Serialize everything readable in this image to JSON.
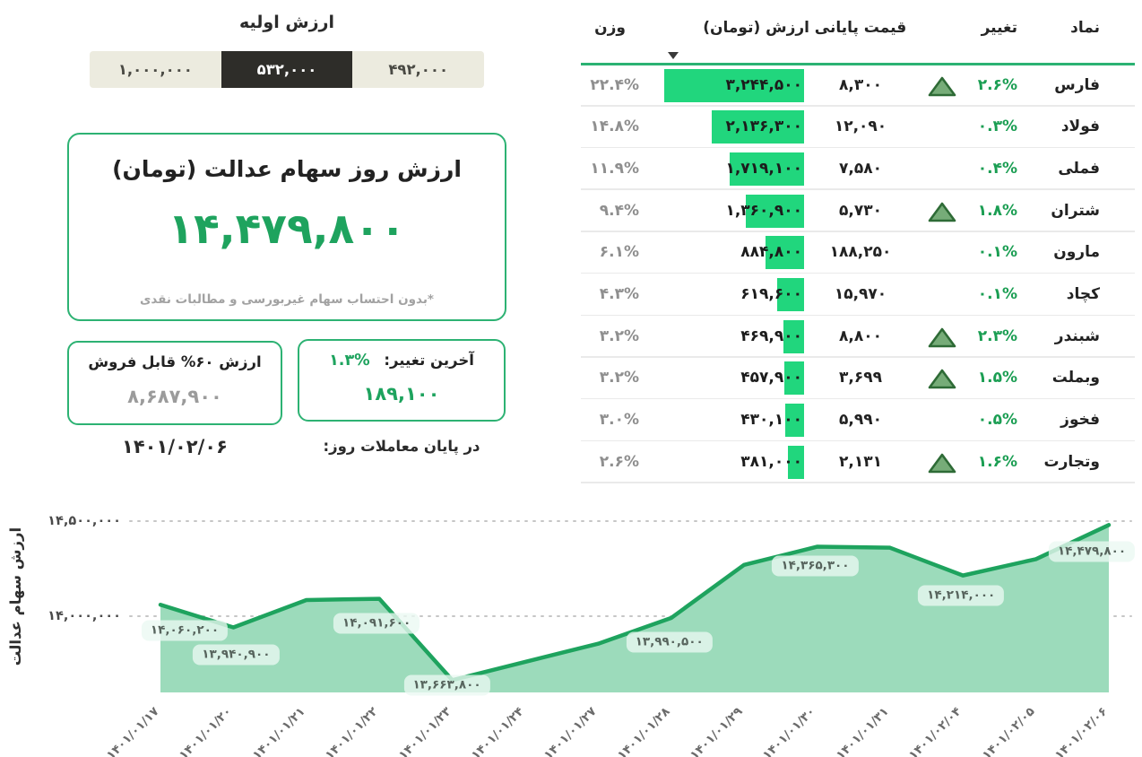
{
  "initial_value": {
    "title": "ارزش اولیه",
    "options": [
      "۱,۰۰۰,۰۰۰",
      "۵۳۲,۰۰۰",
      "۴۹۲,۰۰۰"
    ],
    "selected_index": 1
  },
  "main_card": {
    "title": "ارزش روز سهام عدالت (تومان)",
    "value": "۱۴,۴۷۹,۸۰۰",
    "note": "*بدون احتساب سهام غیربورسی و مطالبات نقدی"
  },
  "sellable_card": {
    "title": "ارزش ۶۰% قابل فروش",
    "value": "۸,۶۸۷,۹۰۰"
  },
  "change_card": {
    "label": "آخرین تغییر:",
    "percent": "۱.۳%",
    "value": "۱۸۹,۱۰۰"
  },
  "date": "۱۴۰۱/۰۲/۰۶",
  "end_of_day_label": "در پایان معاملات روز:",
  "table": {
    "headers": {
      "symbol": "نماد",
      "change": "تغییر",
      "close": "قیمت پایانی",
      "value": "ارزش (تومان)",
      "weight": "وزن"
    },
    "rows": [
      {
        "symbol": "فارس",
        "change": "۲.۶%",
        "up": true,
        "close": "۸,۳۰۰",
        "value": "۳,۲۴۴,۵۰۰",
        "value_num": 3244500,
        "weight": "۲۲.۴%"
      },
      {
        "symbol": "فولاد",
        "change": "۰.۳%",
        "up": false,
        "close": "۱۲,۰۹۰",
        "value": "۲,۱۳۶,۳۰۰",
        "value_num": 2136300,
        "weight": "۱۴.۸%"
      },
      {
        "symbol": "فملی",
        "change": "۰.۴%",
        "up": false,
        "close": "۷,۵۸۰",
        "value": "۱,۷۱۹,۱۰۰",
        "value_num": 1719100,
        "weight": "۱۱.۹%"
      },
      {
        "symbol": "شتران",
        "change": "۱.۸%",
        "up": true,
        "close": "۵,۷۳۰",
        "value": "۱,۳۶۰,۹۰۰",
        "value_num": 1360900,
        "weight": "۹.۴%"
      },
      {
        "symbol": "مارون",
        "change": "۰.۱%",
        "up": false,
        "close": "۱۸۸,۲۵۰",
        "value": "۸۸۴,۸۰۰",
        "value_num": 884800,
        "weight": "۶.۱%"
      },
      {
        "symbol": "کچاد",
        "change": "۰.۱%",
        "up": false,
        "close": "۱۵,۹۷۰",
        "value": "۶۱۹,۶۰۰",
        "value_num": 619600,
        "weight": "۴.۳%"
      },
      {
        "symbol": "شبندر",
        "change": "۲.۳%",
        "up": true,
        "close": "۸,۸۰۰",
        "value": "۴۶۹,۹۰۰",
        "value_num": 469900,
        "weight": "۳.۲%"
      },
      {
        "symbol": "وبملت",
        "change": "۱.۵%",
        "up": true,
        "close": "۳,۶۹۹",
        "value": "۴۵۷,۹۰۰",
        "value_num": 457900,
        "weight": "۳.۲%"
      },
      {
        "symbol": "فخوز",
        "change": "۰.۵%",
        "up": false,
        "close": "۵,۹۹۰",
        "value": "۴۳۰,۱۰۰",
        "value_num": 430100,
        "weight": "۳.۰%"
      },
      {
        "symbol": "وتجارت",
        "change": "۱.۶%",
        "up": true,
        "close": "۲,۱۳۱",
        "value": "۳۸۱,۰۰۰",
        "value_num": 381000,
        "weight": "۲.۶%"
      }
    ]
  },
  "chart_data": {
    "type": "area",
    "ylabel": "ارزش سهام عدالت",
    "grid": "dotted-horizontal",
    "ylim": [
      13590000,
      14700000
    ],
    "yticks": [
      {
        "label": "۱۴,۵۰۰,۰۰۰",
        "value": 14500000
      },
      {
        "label": "۱۴,۰۰۰,۰۰۰",
        "value": 14000000
      }
    ],
    "points": [
      {
        "date": "۱۴۰۱/۰۱/۱۷",
        "value": 14060200,
        "label": "۱۴,۰۶۰,۲۰۰"
      },
      {
        "date": "۱۴۰۱/۰۱/۲۰",
        "value": 13940900,
        "label": "۱۳,۹۴۰,۹۰۰"
      },
      {
        "date": "۱۴۰۱/۰۱/۲۱",
        "value": 14085000
      },
      {
        "date": "۱۴۰۱/۰۱/۲۲",
        "value": 14091600,
        "label": "۱۴,۰۹۱,۶۰۰"
      },
      {
        "date": "۱۴۰۱/۰۱/۲۳",
        "value": 13663800,
        "label": "۱۳,۶۶۳,۸۰۰"
      },
      {
        "date": "۱۴۰۱/۰۱/۲۴",
        "value": 13760000
      },
      {
        "date": "۱۴۰۱/۰۱/۲۷",
        "value": 13855000
      },
      {
        "date": "۱۴۰۱/۰۱/۲۸",
        "value": 13990500,
        "label": "۱۳,۹۹۰,۵۰۰"
      },
      {
        "date": "۱۴۰۱/۰۱/۲۹",
        "value": 14270000
      },
      {
        "date": "۱۴۰۱/۰۱/۳۰",
        "value": 14365300,
        "label": "۱۴,۳۶۵,۳۰۰"
      },
      {
        "date": "۱۴۰۱/۰۱/۳۱",
        "value": 14360000
      },
      {
        "date": "۱۴۰۱/۰۲/۰۴",
        "value": 14214000,
        "label": "۱۴,۲۱۴,۰۰۰"
      },
      {
        "date": "۱۴۰۱/۰۲/۰۵",
        "value": 14300000
      },
      {
        "date": "۱۴۰۱/۰۲/۰۶",
        "value": 14479800,
        "label": "۱۴,۴۷۹,۸۰۰"
      }
    ]
  },
  "colors": {
    "green_primary": "#1ea35e",
    "green_bright_bar": "#21d67d",
    "green_border": "#2db273",
    "area_fill": "#9cdbbb",
    "triangle_fill": "#76ac78",
    "triangle_stroke": "#2e6b36",
    "segment_dark": "#2e2d29",
    "segment_light": "#ecebdf",
    "text_dark": "#2d2d2d",
    "text_gray": "#8f8f8f",
    "grid_dots": "#c6c6c6"
  }
}
